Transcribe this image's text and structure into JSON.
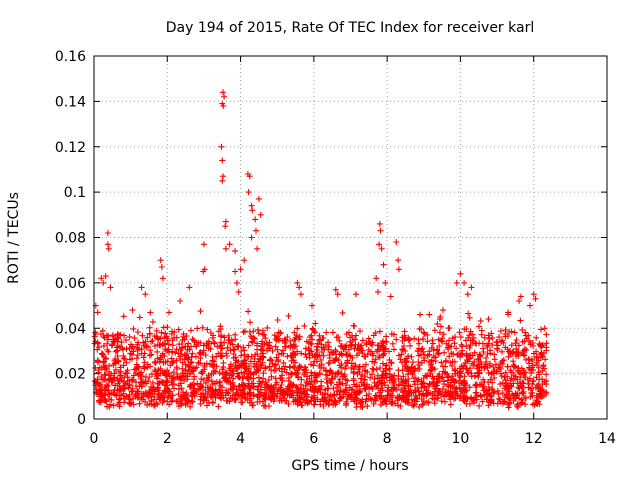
{
  "chart_data": {
    "type": "scatter",
    "title": "Day 194 of 2015, Rate Of TEC Index for receiver karl",
    "xlabel": "GPS time / hours",
    "ylabel": "ROTI / TECUs",
    "xlim": [
      0,
      14
    ],
    "ylim": [
      0,
      0.16
    ],
    "xticks": [
      "0",
      "2",
      "4",
      "6",
      "8",
      "10",
      "12",
      "14"
    ],
    "yticks": [
      "0",
      "0.02",
      "0.04",
      "0.06",
      "0.08",
      "0.1",
      "0.12",
      "0.14",
      "0.16"
    ],
    "grid": true,
    "marker": "+",
    "color": "#ff0000",
    "data_extent_x": [
      0,
      12.35
    ],
    "baseline_range": [
      0.005,
      0.035
    ],
    "notable_points": [
      {
        "x": 3.52,
        "y": 0.144
      },
      {
        "x": 3.55,
        "y": 0.142
      },
      {
        "x": 3.5,
        "y": 0.139
      },
      {
        "x": 3.53,
        "y": 0.138
      },
      {
        "x": 3.48,
        "y": 0.12
      },
      {
        "x": 3.5,
        "y": 0.114
      },
      {
        "x": 3.52,
        "y": 0.107
      },
      {
        "x": 3.5,
        "y": 0.105
      },
      {
        "x": 4.2,
        "y": 0.108
      },
      {
        "x": 4.25,
        "y": 0.107
      },
      {
        "x": 4.22,
        "y": 0.1
      },
      {
        "x": 4.5,
        "y": 0.097
      },
      {
        "x": 4.3,
        "y": 0.094
      },
      {
        "x": 4.32,
        "y": 0.092
      },
      {
        "x": 4.55,
        "y": 0.09
      },
      {
        "x": 4.4,
        "y": 0.088
      },
      {
        "x": 3.6,
        "y": 0.087
      },
      {
        "x": 3.58,
        "y": 0.085
      },
      {
        "x": 4.42,
        "y": 0.083
      },
      {
        "x": 4.3,
        "y": 0.08
      },
      {
        "x": 3.7,
        "y": 0.077
      },
      {
        "x": 3.0,
        "y": 0.077
      },
      {
        "x": 4.45,
        "y": 0.075
      },
      {
        "x": 3.85,
        "y": 0.074
      },
      {
        "x": 3.6,
        "y": 0.075
      },
      {
        "x": 3.02,
        "y": 0.066
      },
      {
        "x": 2.98,
        "y": 0.065
      },
      {
        "x": 4.1,
        "y": 0.07
      },
      {
        "x": 4.0,
        "y": 0.066
      },
      {
        "x": 0.38,
        "y": 0.082
      },
      {
        "x": 0.38,
        "y": 0.077
      },
      {
        "x": 0.4,
        "y": 0.075
      },
      {
        "x": 0.32,
        "y": 0.063
      },
      {
        "x": 0.2,
        "y": 0.062
      },
      {
        "x": 0.25,
        "y": 0.06
      },
      {
        "x": 0.45,
        "y": 0.058
      },
      {
        "x": 1.82,
        "y": 0.07
      },
      {
        "x": 1.85,
        "y": 0.067
      },
      {
        "x": 1.88,
        "y": 0.062
      },
      {
        "x": 1.3,
        "y": 0.058
      },
      {
        "x": 1.4,
        "y": 0.055
      },
      {
        "x": 2.6,
        "y": 0.058
      },
      {
        "x": 2.35,
        "y": 0.052
      },
      {
        "x": 7.8,
        "y": 0.086
      },
      {
        "x": 7.82,
        "y": 0.083
      },
      {
        "x": 7.78,
        "y": 0.077
      },
      {
        "x": 7.85,
        "y": 0.075
      },
      {
        "x": 8.25,
        "y": 0.078
      },
      {
        "x": 7.9,
        "y": 0.068
      },
      {
        "x": 8.3,
        "y": 0.07
      },
      {
        "x": 8.32,
        "y": 0.066
      },
      {
        "x": 7.7,
        "y": 0.062
      },
      {
        "x": 7.95,
        "y": 0.06
      },
      {
        "x": 7.75,
        "y": 0.056
      },
      {
        "x": 8.1,
        "y": 0.054
      },
      {
        "x": 10.0,
        "y": 0.064
      },
      {
        "x": 10.1,
        "y": 0.06
      },
      {
        "x": 9.9,
        "y": 0.06
      },
      {
        "x": 10.3,
        "y": 0.058
      },
      {
        "x": 10.2,
        "y": 0.055
      },
      {
        "x": 5.55,
        "y": 0.06
      },
      {
        "x": 5.6,
        "y": 0.058
      },
      {
        "x": 5.65,
        "y": 0.055
      },
      {
        "x": 5.95,
        "y": 0.05
      },
      {
        "x": 6.65,
        "y": 0.055
      },
      {
        "x": 6.6,
        "y": 0.057
      },
      {
        "x": 7.15,
        "y": 0.055
      },
      {
        "x": 12.0,
        "y": 0.055
      },
      {
        "x": 12.05,
        "y": 0.053
      },
      {
        "x": 11.65,
        "y": 0.054
      },
      {
        "x": 11.6,
        "y": 0.052
      },
      {
        "x": 11.9,
        "y": 0.05
      },
      {
        "x": 11.3,
        "y": 0.047
      },
      {
        "x": 9.15,
        "y": 0.046
      },
      {
        "x": 9.45,
        "y": 0.045
      },
      {
        "x": 8.9,
        "y": 0.046
      },
      {
        "x": 12.3,
        "y": 0.04
      },
      {
        "x": 1.05,
        "y": 0.048
      },
      {
        "x": 0.05,
        "y": 0.05
      },
      {
        "x": 0.1,
        "y": 0.047
      },
      {
        "x": 2.05,
        "y": 0.047
      },
      {
        "x": 3.85,
        "y": 0.065
      },
      {
        "x": 3.9,
        "y": 0.06
      },
      {
        "x": 3.95,
        "y": 0.056
      }
    ]
  }
}
